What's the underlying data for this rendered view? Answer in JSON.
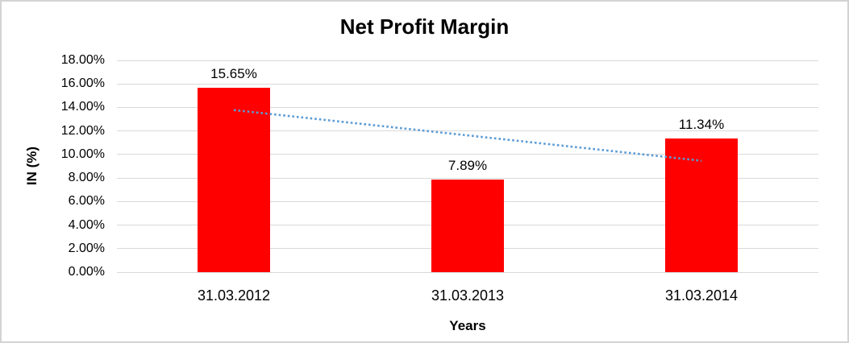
{
  "chart_data": {
    "type": "bar",
    "title": "Net Profit Margin",
    "xlabel": "Years",
    "ylabel": "IN (%)",
    "categories": [
      "31.03.2012",
      "31.03.2013",
      "31.03.2014"
    ],
    "series": [
      {
        "name": "Net Profit Margin",
        "values": [
          15.65,
          7.89,
          11.34
        ]
      }
    ],
    "value_labels": [
      "15.65%",
      "7.89%",
      "11.34%"
    ],
    "y_ticks": [
      {
        "value": 0,
        "label": "0.00%"
      },
      {
        "value": 2,
        "label": "2.00%"
      },
      {
        "value": 4,
        "label": "4.00%"
      },
      {
        "value": 6,
        "label": "6.00%"
      },
      {
        "value": 8,
        "label": "8.00%"
      },
      {
        "value": 10,
        "label": "10.00%"
      },
      {
        "value": 12,
        "label": "12.00%"
      },
      {
        "value": 14,
        "label": "14.00%"
      },
      {
        "value": 16,
        "label": "16.00%"
      },
      {
        "value": 18,
        "label": "18.00%"
      }
    ],
    "ylim": [
      0,
      18
    ],
    "grid": true,
    "legend": false,
    "trendline": {
      "type": "linear",
      "style": "dotted",
      "start_value": 13.78,
      "end_value": 9.47
    }
  },
  "colors": {
    "bar": "#ff0000",
    "trendline": "#5b9bd5",
    "gridline": "#d9d9d9",
    "frame_border": "#d3d3d3",
    "background": "#ffffff",
    "text": "#000000"
  }
}
